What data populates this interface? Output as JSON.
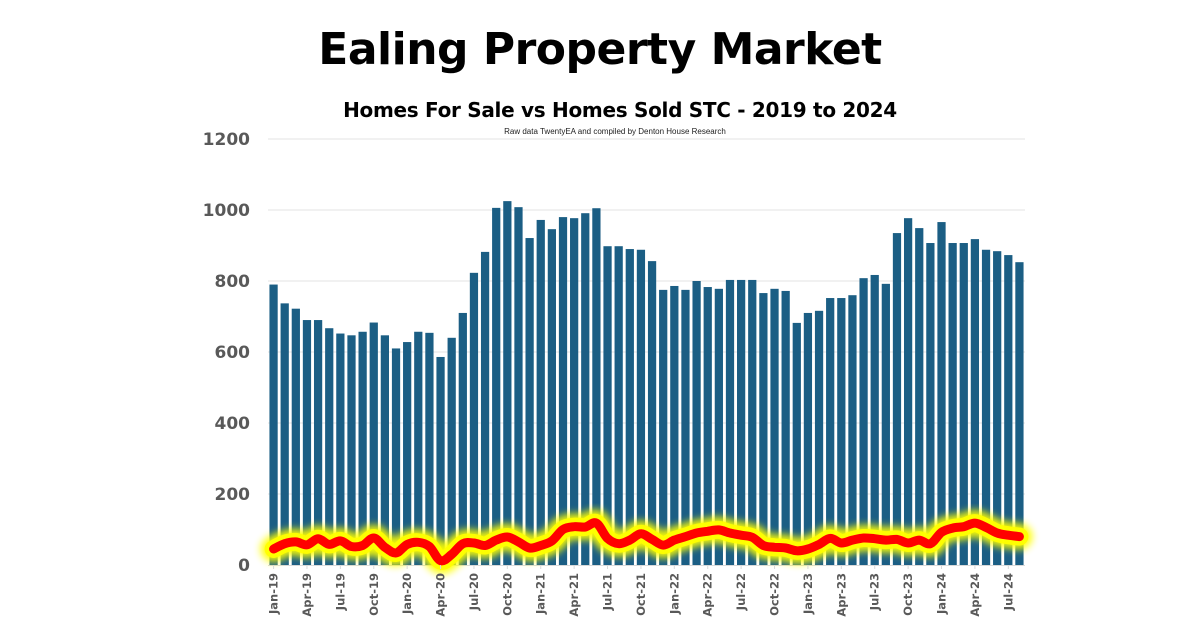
{
  "chart_data": {
    "type": "bar",
    "title": "Ealing Property Market",
    "subtitle": "Homes For Sale vs Homes Sold STC - 2019 to 2024",
    "source_note": "Raw data TwentyEA and compiled by Denton House Research",
    "xlabel": "",
    "ylabel": "",
    "ylim": [
      0,
      1200
    ],
    "yticks": [
      "0",
      "200",
      "400",
      "600",
      "800",
      "1000",
      "1200"
    ],
    "ytick_values": [
      0,
      200,
      400,
      600,
      800,
      1000,
      1200
    ],
    "grid": true,
    "legend": "none",
    "categories": [
      "Jan-19",
      "Feb-19",
      "Mar-19",
      "Apr-19",
      "May-19",
      "Jun-19",
      "Jul-19",
      "Aug-19",
      "Sep-19",
      "Oct-19",
      "Nov-19",
      "Dec-19",
      "Jan-20",
      "Feb-20",
      "Mar-20",
      "Apr-20",
      "May-20",
      "Jun-20",
      "Jul-20",
      "Aug-20",
      "Sep-20",
      "Oct-20",
      "Nov-20",
      "Dec-20",
      "Jan-21",
      "Feb-21",
      "Mar-21",
      "Apr-21",
      "May-21",
      "Jun-21",
      "Jul-21",
      "Aug-21",
      "Sep-21",
      "Oct-21",
      "Nov-21",
      "Dec-21",
      "Jan-22",
      "Feb-22",
      "Mar-22",
      "Apr-22",
      "May-22",
      "Jun-22",
      "Jul-22",
      "Aug-22",
      "Sep-22",
      "Oct-22",
      "Nov-22",
      "Dec-22",
      "Jan-23",
      "Feb-23",
      "Mar-23",
      "Apr-23",
      "May-23",
      "Jun-23",
      "Jul-23",
      "Aug-23",
      "Sep-23",
      "Oct-23",
      "Nov-23",
      "Dec-23",
      "Jan-24",
      "Feb-24",
      "Mar-24",
      "Apr-24",
      "May-24",
      "Jun-24",
      "Jul-24",
      "Aug-24"
    ],
    "xtick_labels": [
      "Jan-19",
      "Apr-19",
      "Jul-19",
      "Oct-19",
      "Jan-20",
      "Apr-20",
      "Jul-20",
      "Oct-20",
      "Jan-21",
      "Apr-21",
      "Jul-21",
      "Oct-21",
      "Jan-22",
      "Apr-22",
      "Jul-22",
      "Oct-22",
      "Jan-23",
      "Apr-23",
      "Jul-23",
      "Oct-23",
      "Jan-24",
      "Apr-24",
      "Jul-24"
    ],
    "series": [
      {
        "name": "Homes For Sale",
        "type": "bar",
        "color": "#1b5e84",
        "values": [
          790,
          737,
          722,
          690,
          690,
          667,
          652,
          647,
          657,
          683,
          647,
          610,
          628,
          657,
          654,
          586,
          640,
          710,
          823,
          882,
          1006,
          1025,
          1008,
          921,
          972,
          946,
          980,
          977,
          991,
          1005,
          898,
          898,
          890,
          888,
          856,
          775,
          786,
          775,
          800,
          783,
          778,
          803,
          803,
          803,
          766,
          778,
          772,
          682,
          710,
          716,
          752,
          752,
          760,
          808,
          817,
          792,
          935,
          977,
          949,
          907,
          966,
          907,
          907,
          918,
          888,
          884,
          873,
          853
        ]
      },
      {
        "name": "Homes Sold STC",
        "type": "line",
        "color": "#ff0000",
        "glow_color": "#ffff00",
        "values": [
          45,
          60,
          65,
          57,
          74,
          58,
          68,
          52,
          55,
          76,
          50,
          34,
          58,
          64,
          52,
          12,
          30,
          60,
          62,
          55,
          70,
          79,
          65,
          48,
          55,
          68,
          100,
          108,
          107,
          118,
          75,
          60,
          70,
          88,
          72,
          56,
          70,
          80,
          90,
          95,
          99,
          90,
          84,
          78,
          55,
          50,
          48,
          40,
          45,
          58,
          75,
          62,
          70,
          76,
          74,
          70,
          72,
          62,
          70,
          60,
          92,
          104,
          108,
          118,
          106,
          90,
          84,
          80
        ]
      }
    ]
  }
}
